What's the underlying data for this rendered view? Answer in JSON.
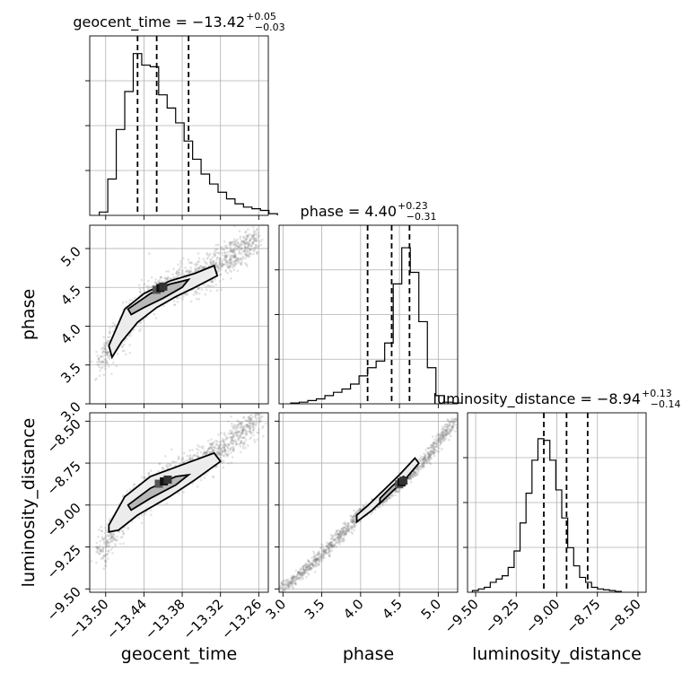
{
  "chart_data": [
    {
      "type": "histogram",
      "panel": "geocent_time",
      "title": {
        "text": "geocent_time = −13.42",
        "sup": "+0.05",
        "sub": "−0.03"
      },
      "xlim": [
        -13.525,
        -13.245
      ],
      "quantiles": [
        -13.45,
        -13.42,
        -13.37
      ],
      "bins": {
        "start": -13.51,
        "width": 0.0133
      },
      "counts": [
        0.02,
        0.22,
        0.52,
        0.75,
        0.98,
        0.91,
        0.9,
        0.73,
        0.65,
        0.56,
        0.45,
        0.34,
        0.25,
        0.19,
        0.14,
        0.1,
        0.07,
        0.05,
        0.04,
        0.03,
        0.01
      ]
    },
    {
      "type": "histogram",
      "panel": "phase",
      "title": {
        "text": "phase = 4.40",
        "sup": "+0.23",
        "sub": "−0.31"
      },
      "xlim": [
        2.95,
        5.25
      ],
      "quantiles": [
        4.09,
        4.4,
        4.63
      ],
      "bins": {
        "start": 3.1,
        "width": 0.11
      },
      "counts": [
        0.005,
        0.01,
        0.02,
        0.03,
        0.05,
        0.07,
        0.09,
        0.12,
        0.17,
        0.22,
        0.26,
        0.37,
        0.73,
        0.95,
        0.8,
        0.5,
        0.22,
        0.05,
        0.01,
        0.005
      ]
    },
    {
      "type": "histogram",
      "panel": "luminosity_distance",
      "title": {
        "text": "luminosity_distance = −8.94",
        "sup": "+0.13",
        "sub": "−0.14"
      },
      "xlim": [
        -9.55,
        -8.45
      ],
      "quantiles": [
        -9.08,
        -8.94,
        -8.81
      ],
      "bins": {
        "start": -9.52,
        "width": 0.0367
      },
      "counts": [
        0.01,
        0.02,
        0.03,
        0.06,
        0.08,
        0.1,
        0.15,
        0.25,
        0.42,
        0.6,
        0.8,
        0.93,
        0.92,
        0.8,
        0.62,
        0.45,
        0.27,
        0.16,
        0.09,
        0.06,
        0.03,
        0.02,
        0.015,
        0.01,
        0.005
      ]
    },
    {
      "type": "scatter",
      "panel": "geocent_time vs phase",
      "x_param": "geocent_time",
      "y_param": "phase",
      "xlim": [
        -13.525,
        -13.245
      ],
      "ylim": [
        3.0,
        5.3
      ],
      "ridge": [
        [
          -13.51,
          3.5
        ],
        [
          -13.47,
          4.0
        ],
        [
          -13.43,
          4.38
        ],
        [
          -13.38,
          4.55
        ],
        [
          -13.32,
          4.8
        ],
        [
          -13.26,
          5.15
        ]
      ],
      "contour_outer": [
        [
          -13.495,
          3.75
        ],
        [
          -13.47,
          4.22
        ],
        [
          -13.44,
          4.42
        ],
        [
          -13.4,
          4.58
        ],
        [
          -13.36,
          4.68
        ],
        [
          -13.33,
          4.78
        ],
        [
          -13.325,
          4.65
        ],
        [
          -13.36,
          4.5
        ],
        [
          -13.39,
          4.38
        ],
        [
          -13.42,
          4.24
        ],
        [
          -13.45,
          4.05
        ],
        [
          -13.475,
          3.8
        ],
        [
          -13.49,
          3.6
        ]
      ],
      "contour_inner": [
        [
          -13.465,
          4.22
        ],
        [
          -13.43,
          4.42
        ],
        [
          -13.4,
          4.54
        ],
        [
          -13.37,
          4.6
        ],
        [
          -13.38,
          4.5
        ],
        [
          -13.41,
          4.36
        ],
        [
          -13.44,
          4.24
        ],
        [
          -13.46,
          4.15
        ]
      ]
    },
    {
      "type": "scatter",
      "panel": "geocent_time vs luminosity_distance",
      "x_param": "geocent_time",
      "y_param": "luminosity_distance",
      "xlim": [
        -13.525,
        -13.245
      ],
      "ylim": [
        -9.52,
        -8.45
      ],
      "ridge": [
        [
          -13.51,
          -9.3
        ],
        [
          -13.47,
          -9.05
        ],
        [
          -13.43,
          -8.9
        ],
        [
          -13.38,
          -8.8
        ],
        [
          -13.32,
          -8.68
        ],
        [
          -13.26,
          -8.48
        ]
      ],
      "contour_outer": [
        [
          -13.495,
          -9.12
        ],
        [
          -13.47,
          -8.95
        ],
        [
          -13.43,
          -8.83
        ],
        [
          -13.38,
          -8.76
        ],
        [
          -13.33,
          -8.69
        ],
        [
          -13.32,
          -8.74
        ],
        [
          -13.36,
          -8.85
        ],
        [
          -13.4,
          -8.95
        ],
        [
          -13.45,
          -9.06
        ],
        [
          -13.48,
          -9.15
        ],
        [
          -13.495,
          -9.16
        ]
      ],
      "contour_inner": [
        [
          -13.465,
          -9.0
        ],
        [
          -13.43,
          -8.9
        ],
        [
          -13.39,
          -8.83
        ],
        [
          -13.37,
          -8.82
        ],
        [
          -13.39,
          -8.88
        ],
        [
          -13.43,
          -8.96
        ],
        [
          -13.46,
          -9.03
        ]
      ]
    },
    {
      "type": "scatter",
      "panel": "phase vs luminosity_distance",
      "x_param": "phase",
      "y_param": "luminosity_distance",
      "xlim": [
        2.95,
        5.25
      ],
      "ylim": [
        -9.52,
        -8.45
      ],
      "ridge": [
        [
          3.0,
          -9.5
        ],
        [
          3.5,
          -9.3
        ],
        [
          4.0,
          -9.05
        ],
        [
          4.4,
          -8.92
        ],
        [
          4.8,
          -8.75
        ],
        [
          5.2,
          -8.5
        ]
      ],
      "contour_outer": [
        [
          3.95,
          -9.1
        ],
        [
          4.15,
          -9.03
        ],
        [
          4.35,
          -8.94
        ],
        [
          4.55,
          -8.86
        ],
        [
          4.75,
          -8.75
        ],
        [
          4.7,
          -8.72
        ],
        [
          4.5,
          -8.82
        ],
        [
          4.3,
          -8.91
        ],
        [
          4.1,
          -9.0
        ],
        [
          3.95,
          -9.06
        ]
      ],
      "contour_inner": [
        [
          4.25,
          -8.99
        ],
        [
          4.45,
          -8.9
        ],
        [
          4.6,
          -8.84
        ],
        [
          4.55,
          -8.83
        ],
        [
          4.4,
          -8.89
        ],
        [
          4.25,
          -8.96
        ]
      ]
    }
  ],
  "axes": {
    "x_params": [
      "geocent_time",
      "phase",
      "luminosity_distance"
    ],
    "y_params": [
      "phase",
      "luminosity_distance"
    ],
    "xticks": {
      "geocent_time": [
        -13.5,
        -13.44,
        -13.38,
        -13.32,
        -13.26
      ],
      "phase": [
        3.0,
        3.5,
        4.0,
        4.5,
        5.0
      ],
      "luminosity_distance": [
        -9.5,
        -9.25,
        -9.0,
        -8.75,
        -8.5
      ]
    },
    "xtick_labels": {
      "geocent_time": [
        "−13.50",
        "−13.44",
        "−13.38",
        "−13.32",
        "−13.26"
      ],
      "phase": [
        "3.0",
        "3.5",
        "4.0",
        "4.5",
        "5.0"
      ],
      "luminosity_distance": [
        "−9.50",
        "−9.25",
        "−9.00",
        "−8.75",
        "−8.50"
      ]
    },
    "yticks": {
      "phase": [
        3.0,
        3.5,
        4.0,
        4.5,
        5.0
      ],
      "luminosity_distance": [
        -9.5,
        -9.25,
        -9.0,
        -8.75,
        -8.5
      ]
    },
    "ytick_labels": {
      "phase": [
        "3.0",
        "3.5",
        "4.0",
        "4.5",
        "5.0"
      ],
      "luminosity_distance": [
        "−9.50",
        "−9.25",
        "−9.00",
        "−8.75",
        "−8.50"
      ]
    }
  }
}
